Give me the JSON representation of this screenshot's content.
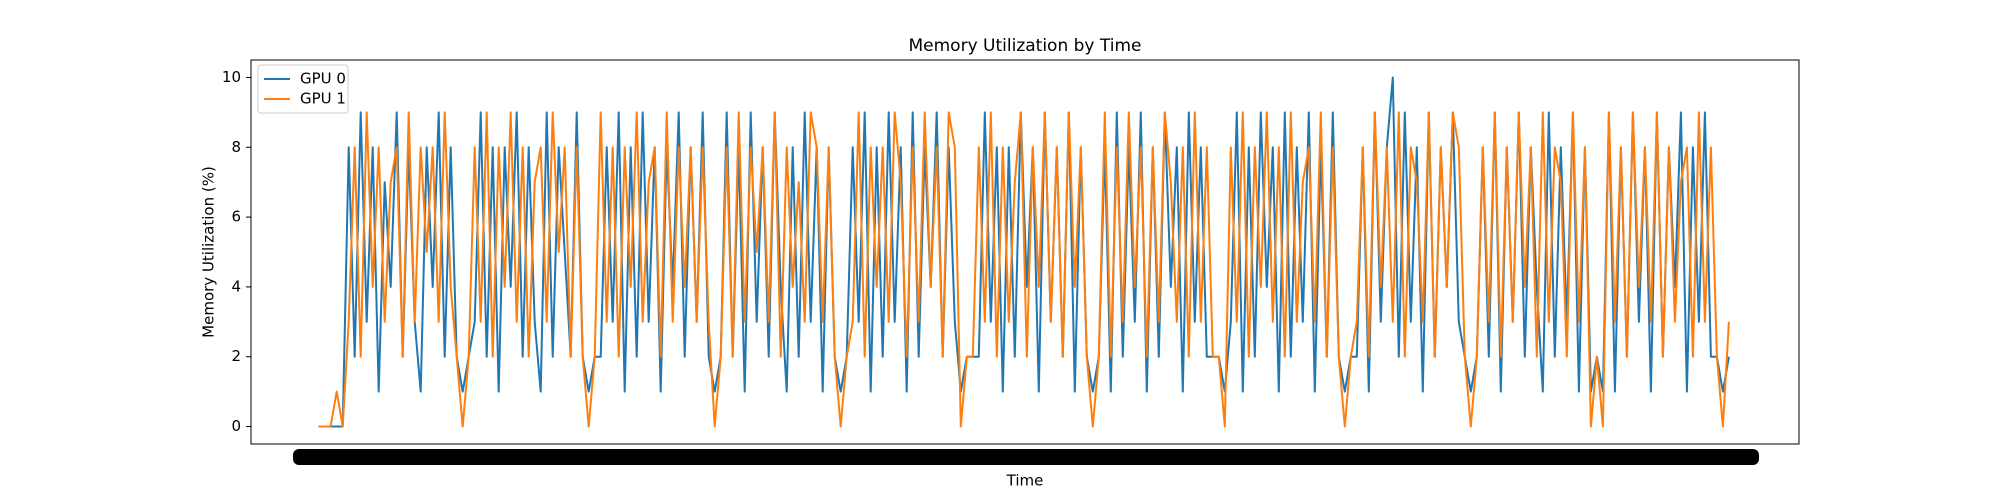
{
  "chart_data": {
    "type": "line",
    "title": "Memory Utilization by Time",
    "x_label": "Time",
    "y_label": "Memory Utilization (%)",
    "ylim": [
      -0.5,
      10.5
    ],
    "yticks": [
      0,
      2,
      4,
      6,
      8,
      10
    ],
    "legend": "upper left",
    "series": [
      {
        "name": "GPU 0",
        "color": "#1f77b4",
        "values": [
          0,
          0,
          0,
          0,
          0,
          8,
          2,
          9,
          3,
          8,
          1,
          7,
          4,
          9,
          2,
          8,
          3,
          1,
          8,
          4,
          9,
          2,
          8,
          2,
          1,
          2,
          3,
          9,
          2,
          8,
          1,
          8,
          4,
          9,
          2,
          8,
          3,
          1,
          9,
          2,
          8,
          5,
          2,
          9,
          2,
          1,
          2,
          2,
          8,
          3,
          9,
          1,
          8,
          2,
          9,
          3,
          8,
          1,
          8,
          4,
          9,
          2,
          8,
          3,
          9,
          2,
          1,
          2,
          9,
          2,
          8,
          1,
          9,
          3,
          8,
          2,
          9,
          4,
          1,
          8,
          2,
          9,
          3,
          8,
          1,
          8,
          2,
          1,
          2,
          8,
          3,
          9,
          1,
          8,
          2,
          9,
          3,
          8,
          1,
          9,
          2,
          8,
          4,
          9,
          2,
          8,
          3,
          1,
          2,
          2,
          2,
          9,
          3,
          8,
          1,
          8,
          2,
          9,
          4,
          8,
          1,
          9,
          3,
          8,
          2,
          9,
          1,
          8,
          2,
          1,
          2,
          8,
          1,
          9,
          2,
          8,
          3,
          9,
          1,
          8,
          2,
          9,
          4,
          8,
          1,
          9,
          3,
          8,
          2,
          2,
          2,
          1,
          3,
          9,
          1,
          8,
          2,
          9,
          4,
          8,
          1,
          9,
          2,
          8,
          3,
          9,
          1,
          8,
          2,
          9,
          2,
          1,
          2,
          2,
          8,
          1,
          9,
          3,
          8,
          10,
          2,
          9,
          3,
          8,
          1,
          9,
          2,
          8,
          4,
          9,
          3,
          2,
          1,
          2,
          8,
          2,
          9,
          1,
          8,
          3,
          9,
          2,
          8,
          4,
          1,
          9,
          2,
          8,
          3,
          9,
          1,
          8,
          1,
          2,
          1,
          9,
          1,
          8,
          2,
          9,
          3,
          8,
          1,
          9,
          2,
          8,
          4,
          9,
          1,
          8,
          3,
          9,
          2,
          2,
          1,
          2
        ]
      },
      {
        "name": "GPU 1",
        "color": "#ff7f0e",
        "values": [
          0,
          0,
          0,
          1,
          0,
          3,
          8,
          2,
          9,
          4,
          8,
          3,
          7,
          8,
          2,
          9,
          3,
          8,
          5,
          8,
          3,
          9,
          4,
          2,
          0,
          2,
          8,
          3,
          9,
          2,
          8,
          4,
          9,
          3,
          8,
          2,
          7,
          8,
          3,
          9,
          5,
          8,
          2,
          8,
          2,
          0,
          2,
          9,
          3,
          8,
          2,
          8,
          4,
          9,
          3,
          7,
          8,
          2,
          9,
          3,
          8,
          4,
          8,
          3,
          8,
          3,
          0,
          2,
          8,
          2,
          9,
          3,
          8,
          5,
          8,
          3,
          9,
          2,
          8,
          4,
          7,
          3,
          9,
          8,
          3,
          8,
          2,
          0,
          2,
          3,
          9,
          2,
          8,
          4,
          8,
          3,
          9,
          7,
          2,
          8,
          3,
          9,
          4,
          8,
          2,
          9,
          8,
          0,
          2,
          2,
          8,
          3,
          9,
          2,
          8,
          3,
          7,
          9,
          2,
          8,
          4,
          9,
          3,
          8,
          2,
          9,
          4,
          8,
          2,
          0,
          2,
          9,
          2,
          8,
          3,
          9,
          4,
          8,
          2,
          8,
          3,
          9,
          7,
          3,
          8,
          2,
          9,
          3,
          8,
          2,
          2,
          0,
          8,
          3,
          9,
          2,
          8,
          4,
          9,
          3,
          8,
          2,
          9,
          3,
          7,
          8,
          3,
          9,
          2,
          8,
          2,
          0,
          2,
          3,
          8,
          2,
          9,
          4,
          8,
          3,
          9,
          2,
          8,
          7,
          3,
          9,
          2,
          8,
          4,
          9,
          8,
          2,
          0,
          2,
          8,
          3,
          9,
          2,
          8,
          3,
          9,
          4,
          8,
          2,
          9,
          3,
          8,
          7,
          2,
          9,
          3,
          8,
          0,
          2,
          0,
          9,
          3,
          8,
          2,
          9,
          4,
          8,
          3,
          9,
          2,
          8,
          3,
          7,
          8,
          2,
          9,
          3,
          8,
          2,
          0,
          3
        ]
      }
    ]
  }
}
